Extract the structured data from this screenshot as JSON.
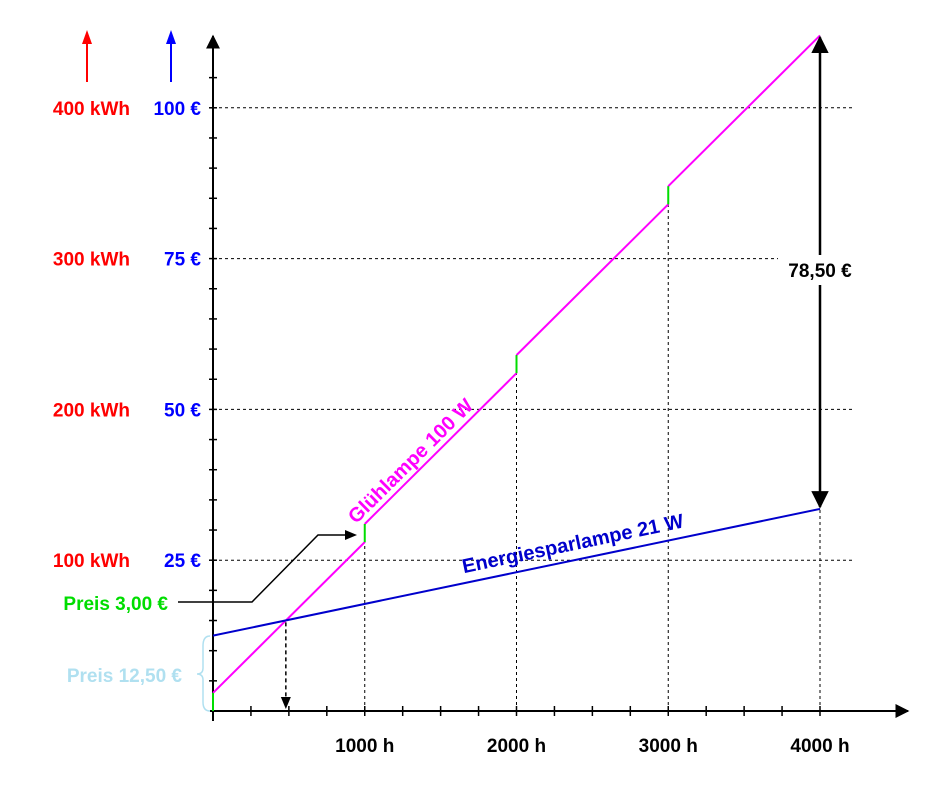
{
  "chart_data": {
    "type": "line",
    "x_axis": {
      "unit": "h",
      "range": [
        0,
        4000
      ],
      "tick_labels": [
        "1000 h",
        "2000 h",
        "3000 h",
        "4000 h"
      ],
      "tick_values": [
        1000,
        2000,
        3000,
        4000
      ]
    },
    "y_axis_energy": {
      "unit": "kWh",
      "color": "#ff0000",
      "tick_labels": [
        "100 kWh",
        "200 kWh",
        "300 kWh",
        "400 kWh"
      ],
      "tick_values": [
        100,
        200,
        300,
        400
      ]
    },
    "y_axis_cost": {
      "unit": "€",
      "color": "#0000ff",
      "range": [
        0,
        112.5
      ],
      "tick_labels": [
        "25 €",
        "50 €",
        "75 €",
        "100 €"
      ],
      "tick_values": [
        25,
        50,
        75,
        100
      ]
    },
    "grid": "dashed",
    "series": [
      {
        "name": "Glühlampe 100 W",
        "color": "#ff00ff",
        "segments": [
          [
            [
              0,
              3.0
            ],
            [
              1000,
              28.0
            ]
          ],
          [
            [
              1000,
              31.0
            ],
            [
              2000,
              56.0
            ]
          ],
          [
            [
              2000,
              59.0
            ],
            [
              3000,
              84.0
            ]
          ],
          [
            [
              3000,
              87.0
            ],
            [
              4000,
              112.0
            ]
          ]
        ],
        "purchase_steps": [
          0,
          1000,
          2000,
          3000
        ],
        "step_color": "#00dd00"
      },
      {
        "name": "Energiesparlampe 21 W",
        "color": "#0000cc",
        "segments": [
          [
            [
              0,
              12.5
            ],
            [
              4000,
              33.5
            ]
          ]
        ]
      }
    ],
    "annotations": {
      "difference_label": "78,50 €",
      "difference_at_x": 4000,
      "difference_from": 33.5,
      "difference_to": 112.0,
      "preis_gluehlampe": "Preis 3,00 €",
      "preis_gluehlampe_color": "#00dd00",
      "preis_sparlampe": "Preis 12,50 €",
      "preis_sparlampe_color": "#b0e0f0",
      "intersection_x": 480
    }
  }
}
